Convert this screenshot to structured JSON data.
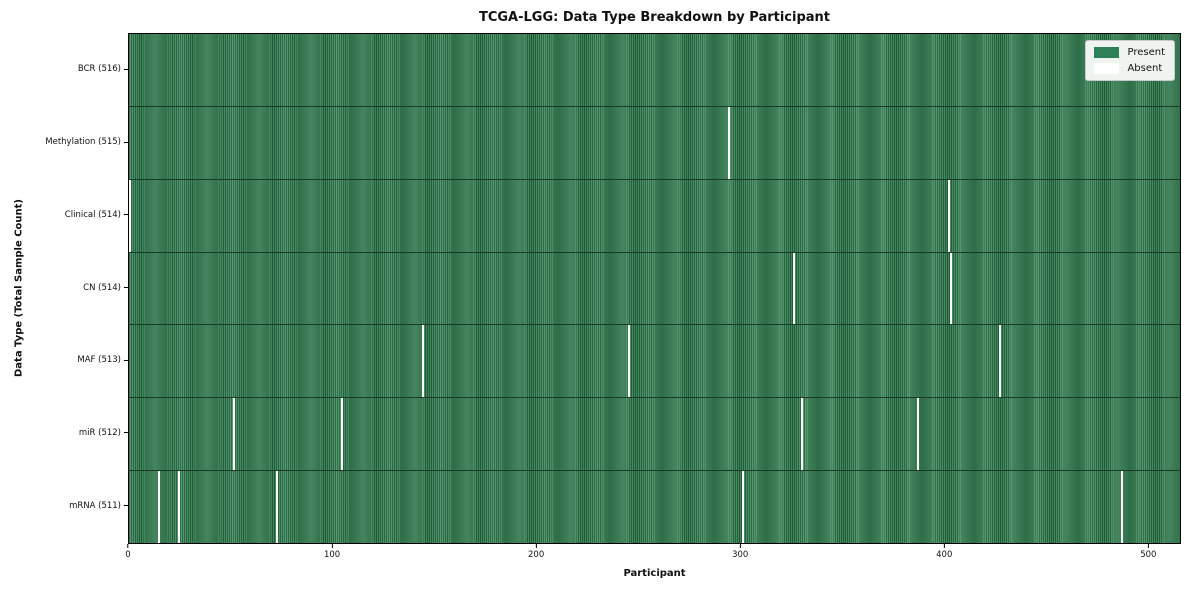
{
  "chart_data": {
    "type": "heatmap",
    "title": "TCGA-LGG: Data Type Breakdown by Participant",
    "xlabel": "Participant",
    "ylabel": "Data Type (Total Sample Count)",
    "x_ticks": [
      0,
      100,
      200,
      300,
      400,
      500
    ],
    "x_range": [
      0,
      516
    ],
    "total_participants": 516,
    "grid": false,
    "colors": {
      "present": "#2e8157",
      "present_stripe_light": "#469162",
      "present_stripe_dark": "#1e5f3b",
      "row_separator": "#1b3a26",
      "absent": "#ffffff",
      "plot_border": "#000000",
      "legend_background": "#f0f4f0"
    },
    "legend": {
      "position": "upper right",
      "entries": [
        {
          "label": "Present",
          "color": "#2e8157"
        },
        {
          "label": "Absent",
          "color": "#ffffff"
        }
      ]
    },
    "rows": [
      {
        "data_type": "BCR",
        "label": "BCR (516)",
        "present_count": 516,
        "absent_participants": []
      },
      {
        "data_type": "Methylation",
        "label": "Methylation (515)",
        "present_count": 515,
        "absent_participants": [
          294
        ]
      },
      {
        "data_type": "Clinical",
        "label": "Clinical (514)",
        "present_count": 514,
        "absent_participants": [
          0,
          402
        ]
      },
      {
        "data_type": "CN",
        "label": "CN (514)",
        "present_count": 514,
        "absent_participants": [
          326,
          403
        ]
      },
      {
        "data_type": "MAF",
        "label": "MAF (513)",
        "present_count": 513,
        "absent_participants": [
          144,
          245,
          427
        ]
      },
      {
        "data_type": "miR",
        "label": "miR (512)",
        "present_count": 512,
        "absent_participants": [
          51,
          104,
          330,
          387
        ]
      },
      {
        "data_type": "mRNA",
        "label": "mRNA (511)",
        "present_count": 511,
        "absent_participants": [
          14,
          24,
          72,
          301,
          487
        ]
      }
    ]
  }
}
